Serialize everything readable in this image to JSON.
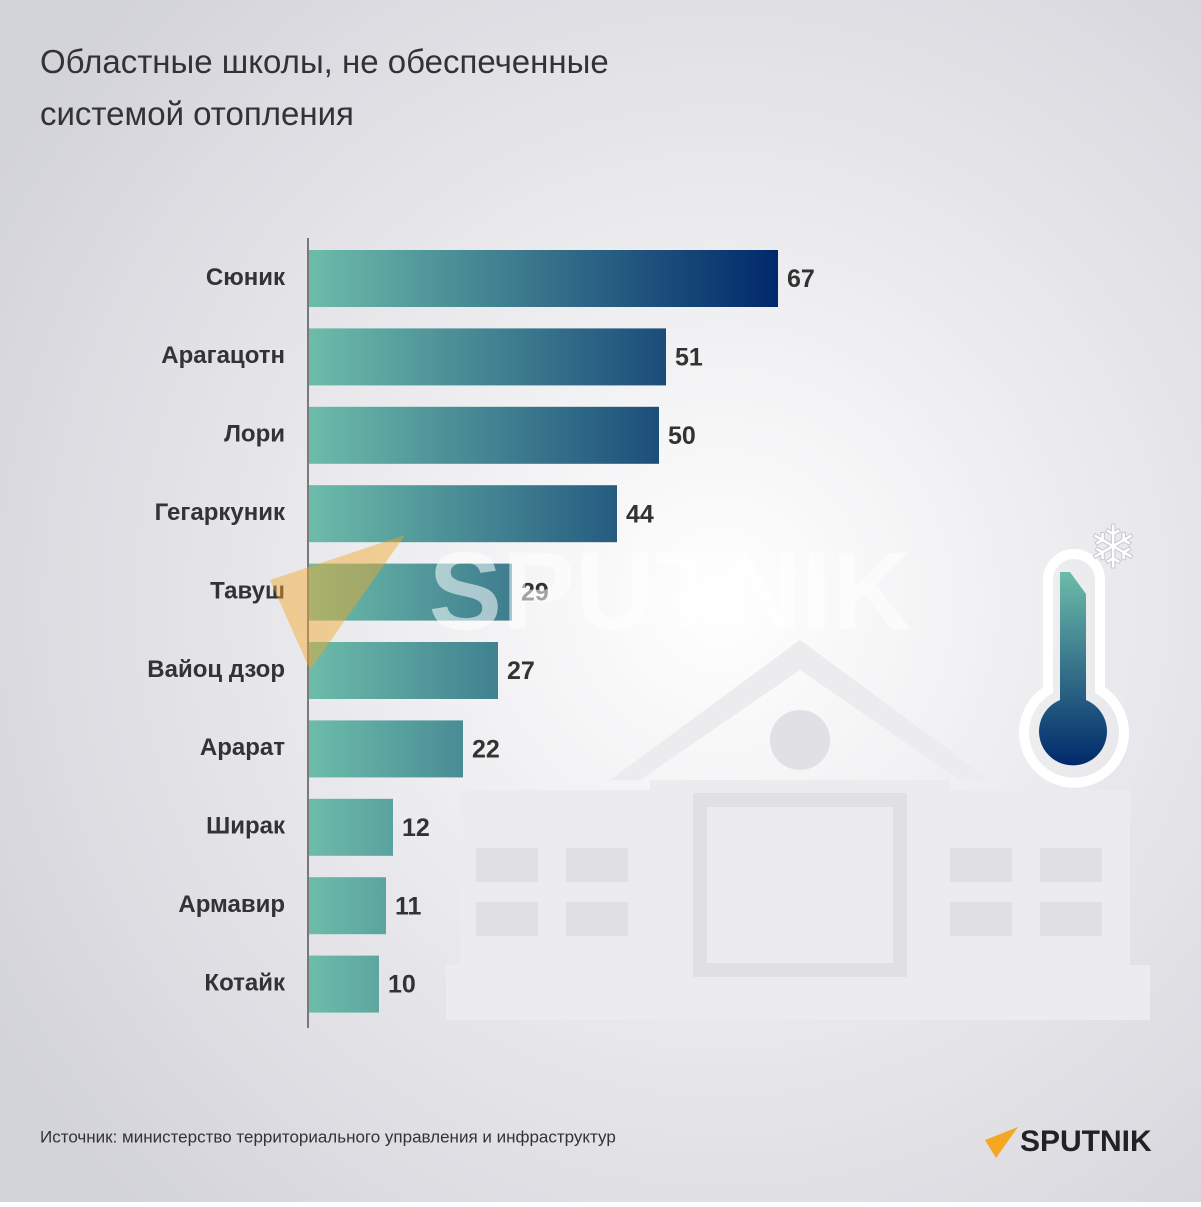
{
  "chart_data": {
    "type": "bar",
    "orientation": "horizontal",
    "title": "Областные школы, не обеспеченные системой отопления",
    "categories": [
      "Сюник",
      "Арагацотн",
      "Лори",
      "Гегаркуник",
      "Тавуш",
      "Вайоц дзор",
      "Арарат",
      "Ширак",
      "Армавир",
      "Котайк"
    ],
    "values": [
      67,
      51,
      50,
      44,
      29,
      27,
      22,
      12,
      11,
      10
    ],
    "colors": [
      "#6dbcaa",
      "#00296b"
    ],
    "source": "Источник: министерство территориального управления и инфраструктур",
    "logo": "SPUTNIK"
  }
}
